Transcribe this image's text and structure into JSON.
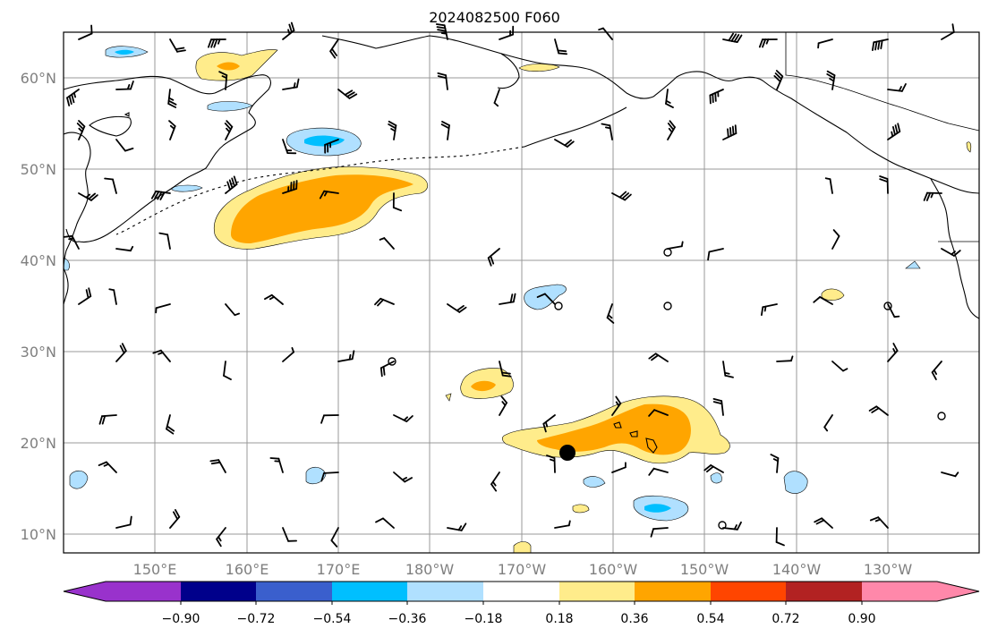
{
  "title": "2024082500 F060",
  "lat_labels": [
    "60°N",
    "50°N",
    "40°N",
    "30°N",
    "20°N",
    "10°N"
  ],
  "lon_labels": [
    "150°E",
    "160°E",
    "170°E",
    "180°W",
    "170°W",
    "160°W",
    "150°W",
    "140°W",
    "130°W"
  ],
  "colorbar": {
    "colors": [
      "#9932cc",
      "#00008b",
      "#3a5fcd",
      "#00bfff",
      "#b0e0ff",
      "#ffffff",
      "#ffec8b",
      "#ffa500",
      "#ff4500",
      "#b22222",
      "#ff88aa"
    ],
    "tick_labels": [
      "−0.90",
      "−0.72",
      "−0.54",
      "−0.36",
      "−0.18",
      "0.18",
      "0.36",
      "0.54",
      "0.72",
      "0.90"
    ]
  },
  "colors": {
    "land_line": "#000000",
    "grid": "#999999",
    "positive_light": "#ffec8b",
    "positive_mid": "#ffa500",
    "negative_light": "#b0e0ff",
    "negative_mid": "#00bfff"
  },
  "markers": {
    "storm_center_dot": "black filled circle"
  }
}
